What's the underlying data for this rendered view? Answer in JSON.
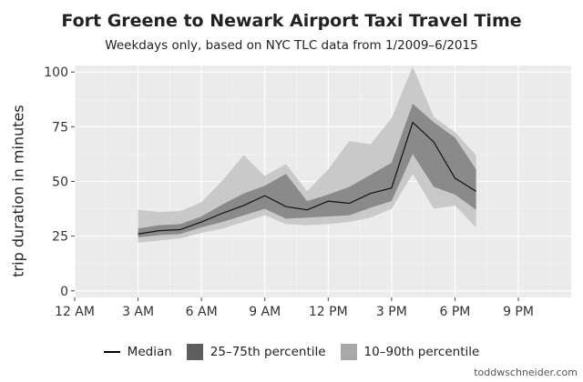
{
  "chart_data": {
    "type": "area",
    "title": "Fort Greene to Newark Airport Taxi Travel Time",
    "subtitle": "Weekdays only, based on NYC TLC data from 1/2009–6/2015",
    "xlabel": "",
    "ylabel": "trip duration in minutes",
    "xlim": [
      0,
      23.5
    ],
    "ylim": [
      -3,
      103
    ],
    "x_ticks": [
      0,
      3,
      6,
      9,
      12,
      15,
      18,
      21
    ],
    "x_tick_labels": [
      "12 AM",
      "3 AM",
      "6 AM",
      "9 AM",
      "12 PM",
      "3 PM",
      "6 PM",
      "9 PM"
    ],
    "y_ticks": [
      0,
      25,
      50,
      75,
      100
    ],
    "y_tick_labels": [
      "0",
      "25",
      "50",
      "75",
      "100"
    ],
    "grid": true,
    "legend_position": "bottom",
    "x": [
      3,
      4,
      5,
      6,
      7,
      8,
      9,
      10,
      11,
      12,
      13,
      14,
      15,
      16,
      17,
      18,
      19
    ],
    "series": [
      {
        "name": "Median",
        "kind": "line",
        "values": [
          26,
          27.5,
          28,
          31.5,
          35.5,
          39,
          43.5,
          38.5,
          37,
          41,
          40,
          44.5,
          47,
          77,
          68,
          51.5,
          45.5
        ]
      },
      {
        "name": "25–75th percentile",
        "kind": "band",
        "low": [
          24.5,
          25.5,
          26,
          29,
          31.5,
          34.5,
          37.5,
          33,
          33.5,
          34,
          34.5,
          38,
          41,
          62.5,
          47.5,
          44,
          37
        ],
        "high": [
          28.5,
          30,
          30.5,
          34,
          39.5,
          44.5,
          48,
          53.5,
          41,
          44,
          47.5,
          53,
          58.5,
          85.5,
          77,
          70,
          55.5
        ]
      },
      {
        "name": "10–90th percentile",
        "kind": "band",
        "low": [
          22,
          23,
          24,
          26.5,
          28.5,
          31.5,
          34.5,
          30.5,
          30,
          30.5,
          31.5,
          33.5,
          37.5,
          53.5,
          37.5,
          39,
          29
        ]
      },
      {
        "name": "10–90th percentile high",
        "kind": "band_high",
        "values": [
          37,
          36,
          36.5,
          40.5,
          50.5,
          62,
          52.5,
          58,
          45.5,
          55.5,
          68.5,
          67,
          79,
          102.5,
          79.5,
          72.5,
          62
        ]
      }
    ]
  },
  "legend": {
    "median_label": "Median",
    "iqr_label": "25–75th percentile",
    "p10_90_label": "10–90th percentile"
  },
  "colors": {
    "panel": "#ebebeb",
    "band_outer": "#c9c9c9",
    "band_inner": "#8a8a8a",
    "median": "#111111",
    "swatch_inner": "#5e5e5e",
    "swatch_outer": "#a8a8a8"
  },
  "credit": "toddwschneider.com"
}
